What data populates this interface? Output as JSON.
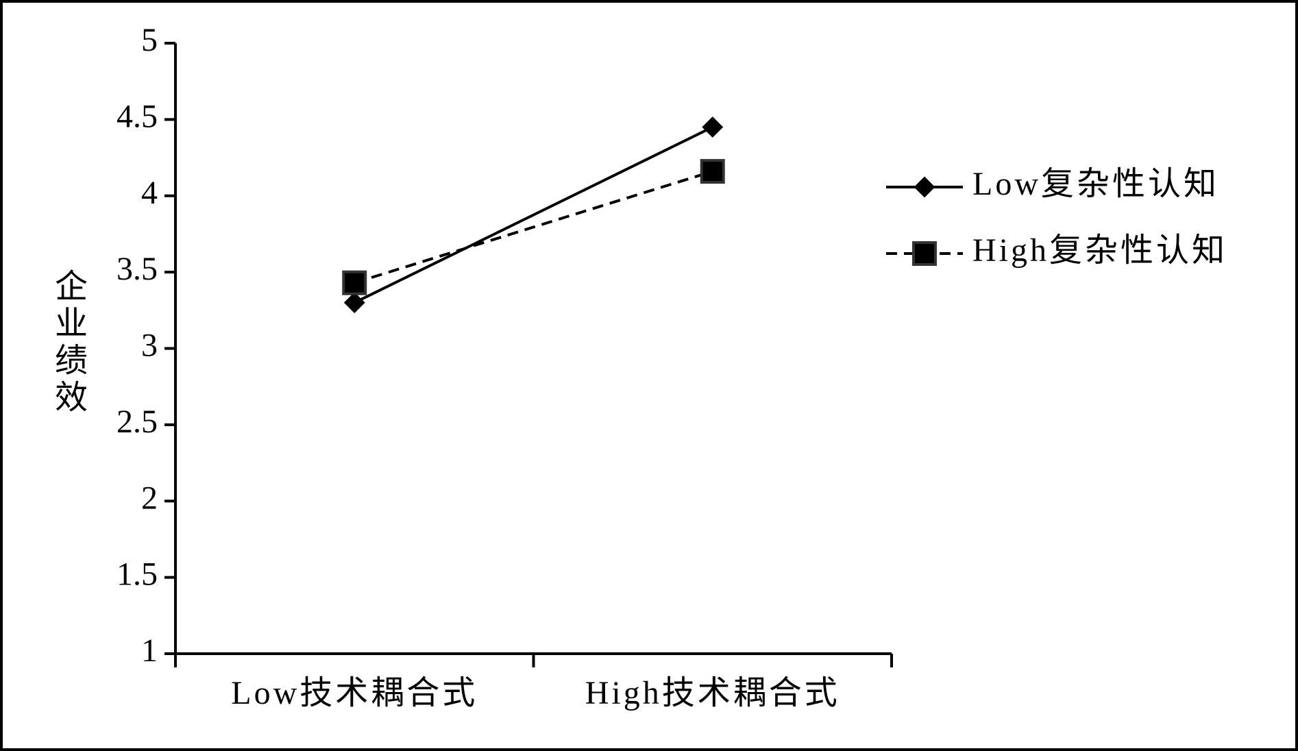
{
  "chart_data": {
    "type": "line",
    "y_label": "企业绩效",
    "categories": [
      "Low技术耦合式",
      "High技术耦合式"
    ],
    "series": [
      {
        "name": "Low复杂性认知",
        "color": "#000000",
        "marker": "diamond",
        "dash": false,
        "values": [
          3.3,
          4.45
        ]
      },
      {
        "name": "High复杂性认知",
        "color": "#000000",
        "marker": "square",
        "dash": true,
        "values": [
          3.43,
          4.16
        ]
      }
    ],
    "ylim": [
      1,
      5
    ],
    "yticks": [
      1,
      1.5,
      2,
      2.5,
      3,
      3.5,
      4,
      4.5,
      5
    ],
    "grid": false,
    "legend": "right"
  }
}
